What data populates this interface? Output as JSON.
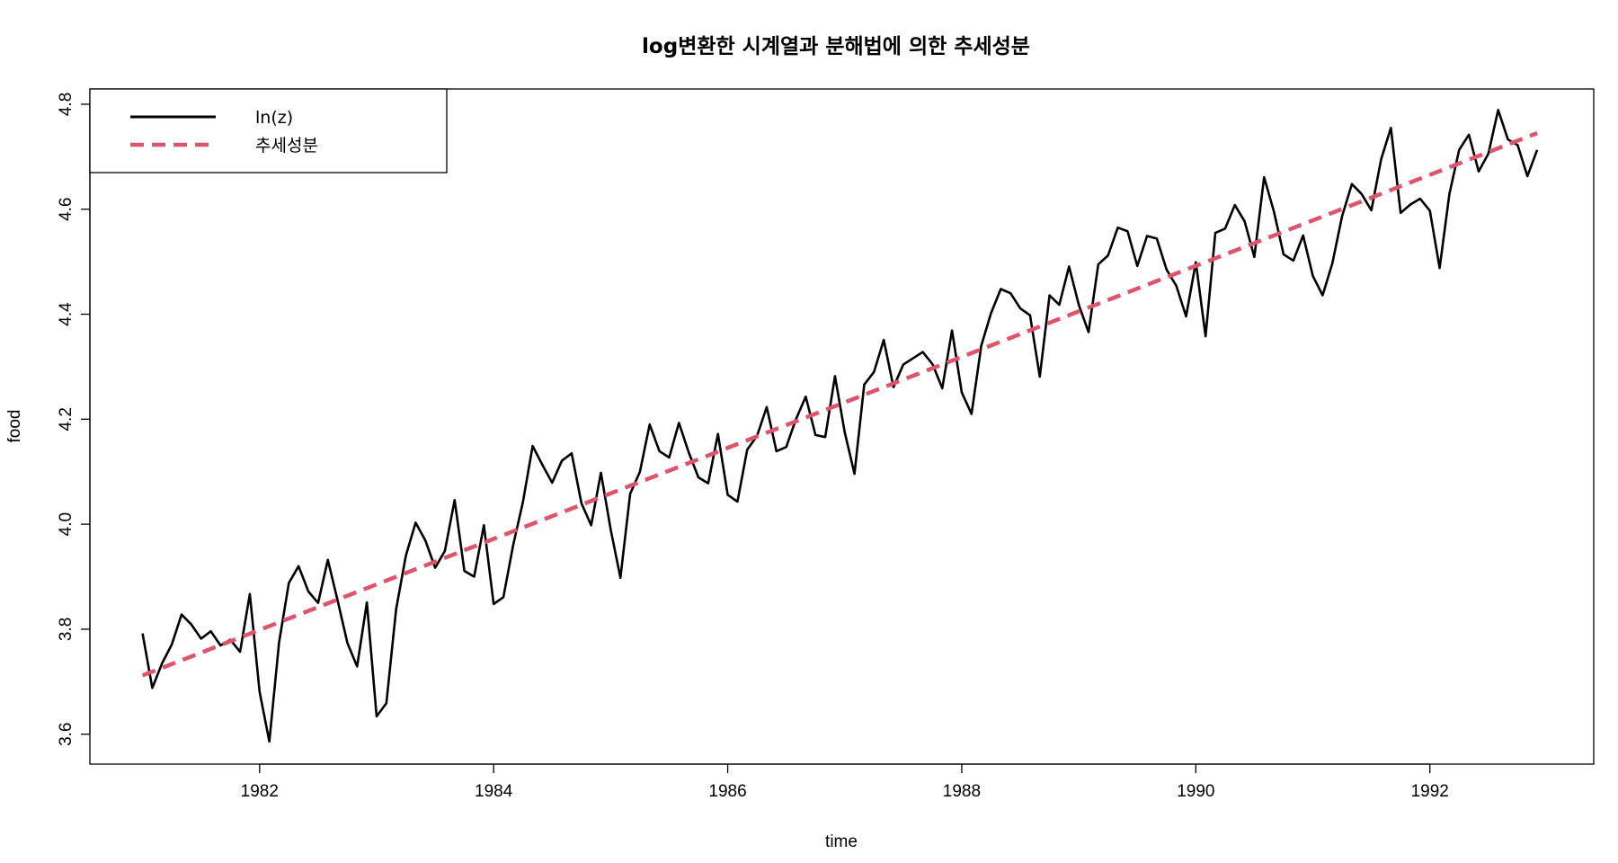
{
  "chart_data": {
    "type": "line",
    "title": "log변환한 시계열과 분해법에 의한 추세성분",
    "xlabel": "time",
    "ylabel": "food",
    "xlim": [
      1980.55,
      1993.4
    ],
    "ylim": [
      3.543,
      4.829
    ],
    "x_ticks": [
      1982,
      1984,
      1986,
      1988,
      1990,
      1992
    ],
    "x_tick_labels": [
      "1982",
      "1984",
      "1986",
      "1988",
      "1990",
      "1992"
    ],
    "y_ticks": [
      3.6,
      3.8,
      4.0,
      4.2,
      4.4,
      4.6,
      4.8
    ],
    "y_tick_labels": [
      "3.6",
      "3.8",
      "4.0",
      "4.2",
      "4.4",
      "4.6",
      "4.8"
    ],
    "legend_position": "top-left",
    "x_start": 1981.0,
    "x_step": 0.08333333,
    "series": [
      {
        "name": "ln(z)",
        "color": "#000000",
        "style": "solid",
        "values": [
          3.792,
          3.688,
          3.735,
          3.771,
          3.828,
          3.809,
          3.782,
          3.796,
          3.769,
          3.78,
          3.757,
          3.867,
          3.681,
          3.586,
          3.775,
          3.888,
          3.92,
          3.872,
          3.85,
          3.932,
          3.855,
          3.774,
          3.729,
          3.851,
          3.634,
          3.659,
          3.838,
          3.94,
          4.003,
          3.969,
          3.917,
          3.949,
          4.046,
          3.911,
          3.9,
          3.998,
          3.848,
          3.861,
          3.96,
          4.042,
          4.149,
          4.113,
          4.079,
          4.121,
          4.135,
          4.04,
          3.998,
          4.098,
          3.99,
          3.898,
          4.058,
          4.1,
          4.19,
          4.139,
          4.127,
          4.193,
          4.137,
          4.089,
          4.078,
          4.172,
          4.056,
          4.043,
          4.142,
          4.168,
          4.223,
          4.139,
          4.147,
          4.2,
          4.243,
          4.17,
          4.166,
          4.282,
          4.175,
          4.096,
          4.266,
          4.29,
          4.351,
          4.261,
          4.304,
          4.316,
          4.328,
          4.305,
          4.259,
          4.369,
          4.251,
          4.21,
          4.34,
          4.402,
          4.448,
          4.44,
          4.411,
          4.398,
          4.281,
          4.436,
          4.418,
          4.491,
          4.418,
          4.366,
          4.495,
          4.512,
          4.565,
          4.558,
          4.492,
          4.549,
          4.544,
          4.485,
          4.454,
          4.396,
          4.499,
          4.358,
          4.555,
          4.563,
          4.608,
          4.577,
          4.509,
          4.661,
          4.596,
          4.514,
          4.502,
          4.55,
          4.473,
          4.436,
          4.497,
          4.587,
          4.648,
          4.629,
          4.598,
          4.695,
          4.755,
          4.593,
          4.609,
          4.62,
          4.597,
          4.488,
          4.629,
          4.713,
          4.742,
          4.672,
          4.706,
          4.789,
          4.733,
          4.722,
          4.663,
          4.713
        ]
      },
      {
        "name": "추세성분",
        "color": "#DF536B",
        "style": "dashed",
        "values_linear": {
          "x_start": 1981.0,
          "y_start": 3.712,
          "x_end": 1992.917,
          "y_end": 4.745
        }
      }
    ]
  }
}
